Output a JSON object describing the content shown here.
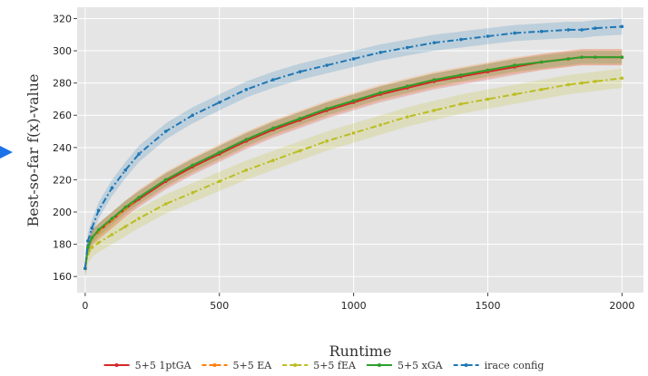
{
  "chart_data": {
    "type": "line",
    "xlabel": "Runtime",
    "ylabel": "Best-so-far f(x)-value",
    "xlim": [
      -30,
      2080
    ],
    "ylim": [
      150,
      327
    ],
    "xticks": [
      0,
      500,
      1000,
      1500,
      2000
    ],
    "yticks": [
      160,
      180,
      200,
      220,
      240,
      260,
      280,
      300,
      320
    ],
    "grid": true,
    "legend_position": "bottom",
    "x": [
      0,
      10,
      25,
      50,
      100,
      150,
      200,
      300,
      400,
      500,
      600,
      700,
      800,
      900,
      1000,
      1100,
      1200,
      1300,
      1400,
      1500,
      1600,
      1700,
      1800,
      1850,
      1900,
      2000
    ],
    "series": [
      {
        "name": "5+5 1ptGA",
        "color": "#d62728",
        "dash": "solid",
        "values": [
          165,
          178,
          184,
          188,
          195,
          202,
          208,
          219,
          228,
          236,
          244,
          251,
          257,
          263,
          268,
          273,
          277,
          281,
          284,
          287,
          290,
          293,
          295,
          296,
          296,
          296
        ],
        "band": 5
      },
      {
        "name": "5+5 EA",
        "color": "#ff7f0e",
        "dash": "dash",
        "values": [
          165,
          178,
          184,
          188,
          195,
          202,
          209,
          220,
          229,
          237,
          245,
          252,
          258,
          264,
          269,
          274,
          278,
          282,
          285,
          288,
          291,
          293,
          295,
          296,
          296,
          296
        ],
        "band": 5
      },
      {
        "name": "5+5 fEA",
        "color": "#bcbd22",
        "dash": "dashdot",
        "values": [
          165,
          174,
          178,
          181,
          186,
          191,
          196,
          205,
          212,
          219,
          226,
          232,
          238,
          244,
          249,
          254,
          259,
          263,
          267,
          270,
          273,
          276,
          279,
          280,
          281,
          283
        ],
        "band": 6
      },
      {
        "name": "5+5 xGA",
        "color": "#2ca02c",
        "dash": "solid",
        "values": [
          165,
          178,
          184,
          189,
          196,
          203,
          209,
          220,
          229,
          237,
          245,
          252,
          258,
          264,
          269,
          274,
          278,
          282,
          285,
          288,
          291,
          293,
          295,
          296,
          296,
          296
        ],
        "band": 4
      },
      {
        "name": "irace config",
        "color": "#1f77b4",
        "dash": "dashdot",
        "values": [
          165,
          182,
          190,
          201,
          215,
          226,
          236,
          250,
          260,
          268,
          276,
          282,
          287,
          291,
          295,
          299,
          302,
          305,
          307,
          309,
          311,
          312,
          313,
          313,
          314,
          315
        ],
        "band": 5
      }
    ]
  }
}
